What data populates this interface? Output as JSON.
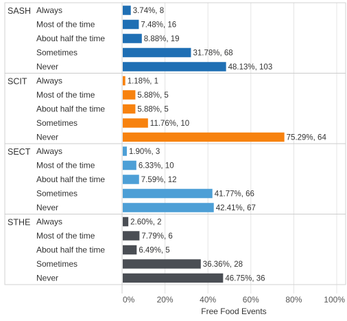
{
  "chart_data": {
    "type": "bar",
    "orientation": "horizontal",
    "xlabel": "Free Food Events",
    "xlim": [
      0,
      100
    ],
    "x_ticks": [
      "0%",
      "20%",
      "40%",
      "60%",
      "80%",
      "100%"
    ],
    "grid": true,
    "categories": [
      "Always",
      "Most of the time",
      "About half the time",
      "Sometimes",
      "Never"
    ],
    "groups": [
      {
        "name": "SASH",
        "color": "#1f6fb4",
        "values": [
          3.74,
          7.48,
          8.88,
          31.78,
          48.13
        ],
        "counts": [
          8,
          16,
          19,
          68,
          103
        ],
        "labels": [
          "3.74%, 8",
          "7.48%, 16",
          "8.88%, 19",
          "31.78%, 68",
          "48.13%, 103"
        ]
      },
      {
        "name": "SCIT",
        "color": "#f7820f",
        "values": [
          1.18,
          5.88,
          5.88,
          11.76,
          75.29
        ],
        "counts": [
          1,
          5,
          5,
          10,
          64
        ],
        "labels": [
          "1.18%, 1",
          "5.88%, 5",
          "5.88%, 5",
          "11.76%, 10",
          "75.29%, 64"
        ]
      },
      {
        "name": "SECT",
        "color": "#4d9fd6",
        "values": [
          1.9,
          6.33,
          7.59,
          41.77,
          42.41
        ],
        "counts": [
          3,
          10,
          12,
          66,
          67
        ],
        "labels": [
          "1.90%, 3",
          "6.33%, 10",
          "7.59%, 12",
          "41.77%, 66",
          "42.41%, 67"
        ]
      },
      {
        "name": "STHE",
        "color": "#4a4e54",
        "values": [
          2.6,
          7.79,
          6.49,
          36.36,
          46.75
        ],
        "counts": [
          2,
          6,
          5,
          28,
          36
        ],
        "labels": [
          "2.60%, 2",
          "7.79%, 6",
          "6.49%, 5",
          "36.36%, 28",
          "46.75%, 36"
        ]
      }
    ]
  }
}
